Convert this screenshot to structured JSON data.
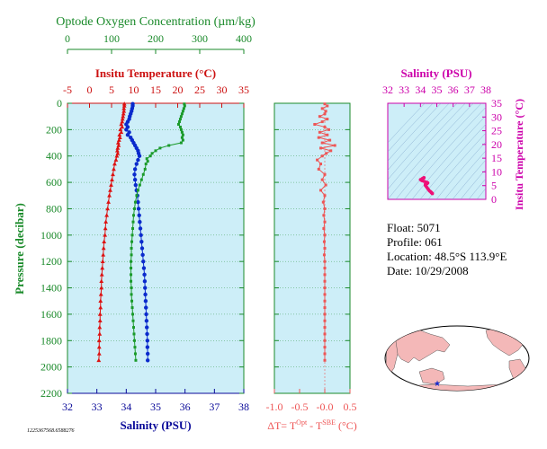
{
  "chart_data": [
    {
      "type": "line",
      "panel": "main-profile",
      "y_axis": {
        "label": "Pressure (decibar)",
        "range": [
          0,
          2200
        ],
        "inverted": true,
        "ticks": [
          0,
          200,
          400,
          600,
          800,
          1000,
          1200,
          1400,
          1600,
          1800,
          2000,
          2200
        ]
      },
      "axes": {
        "oxygen": {
          "title": "Optode Oxygen Concentration (µm/kg)",
          "range": [
            0,
            400
          ],
          "ticks": [
            0,
            100,
            200,
            300,
            400
          ],
          "color": "#1a8a2a"
        },
        "temperature": {
          "title": "Insitu Temperature (°C)",
          "range": [
            -5,
            35
          ],
          "ticks": [
            -5,
            0,
            5,
            10,
            15,
            20,
            25,
            30,
            35
          ],
          "color": "#cc1111"
        },
        "salinity": {
          "title": "Salinity (PSU)",
          "range": [
            32,
            38
          ],
          "ticks": [
            32,
            33,
            34,
            35,
            36,
            37,
            38
          ],
          "color": "#0a0a99"
        }
      },
      "series": [
        {
          "axis": "temperature",
          "marker": "triangle",
          "color": "#dd1111",
          "points": [
            [
              7.9,
              5
            ],
            [
              7.9,
              20
            ],
            [
              7.8,
              40
            ],
            [
              7.8,
              60
            ],
            [
              7.7,
              80
            ],
            [
              7.6,
              100
            ],
            [
              7.5,
              120
            ],
            [
              7.4,
              140
            ],
            [
              7.2,
              160
            ],
            [
              7.4,
              180
            ],
            [
              7.0,
              200
            ],
            [
              7.2,
              220
            ],
            [
              6.8,
              240
            ],
            [
              6.9,
              260
            ],
            [
              6.7,
              280
            ],
            [
              6.5,
              300
            ],
            [
              6.6,
              320
            ],
            [
              6.4,
              340
            ],
            [
              6.3,
              360
            ],
            [
              6.4,
              380
            ],
            [
              6.2,
              400
            ],
            [
              6.0,
              430
            ],
            [
              5.7,
              460
            ],
            [
              5.5,
              500
            ],
            [
              5.3,
              540
            ],
            [
              5.1,
              580
            ],
            [
              4.9,
              620
            ],
            [
              4.7,
              660
            ],
            [
              4.5,
              700
            ],
            [
              4.3,
              750
            ],
            [
              4.1,
              800
            ],
            [
              3.9,
              850
            ],
            [
              3.7,
              900
            ],
            [
              3.6,
              950
            ],
            [
              3.5,
              1000
            ],
            [
              3.3,
              1050
            ],
            [
              3.2,
              1100
            ],
            [
              3.1,
              1150
            ],
            [
              3.0,
              1200
            ],
            [
              2.9,
              1250
            ],
            [
              2.8,
              1300
            ],
            [
              2.7,
              1350
            ],
            [
              2.7,
              1400
            ],
            [
              2.6,
              1450
            ],
            [
              2.5,
              1500
            ],
            [
              2.5,
              1550
            ],
            [
              2.4,
              1600
            ],
            [
              2.4,
              1650
            ],
            [
              2.3,
              1700
            ],
            [
              2.3,
              1750
            ],
            [
              2.2,
              1800
            ],
            [
              2.2,
              1850
            ],
            [
              2.2,
              1900
            ],
            [
              2.1,
              1950
            ]
          ]
        },
        {
          "axis": "salinity",
          "marker": "circle",
          "color": "#0a2acc",
          "points": [
            [
              34.22,
              5
            ],
            [
              34.22,
              20
            ],
            [
              34.2,
              40
            ],
            [
              34.18,
              60
            ],
            [
              34.15,
              80
            ],
            [
              34.12,
              100
            ],
            [
              34.1,
              120
            ],
            [
              34.05,
              140
            ],
            [
              34.0,
              160
            ],
            [
              34.05,
              180
            ],
            [
              34.0,
              200
            ],
            [
              34.1,
              220
            ],
            [
              34.05,
              240
            ],
            [
              34.15,
              260
            ],
            [
              34.2,
              280
            ],
            [
              34.25,
              300
            ],
            [
              34.3,
              320
            ],
            [
              34.35,
              340
            ],
            [
              34.4,
              360
            ],
            [
              34.42,
              380
            ],
            [
              34.45,
              400
            ],
            [
              34.4,
              430
            ],
            [
              34.35,
              460
            ],
            [
              34.3,
              500
            ],
            [
              34.28,
              540
            ],
            [
              34.3,
              580
            ],
            [
              34.32,
              620
            ],
            [
              34.35,
              660
            ],
            [
              34.38,
              700
            ],
            [
              34.4,
              750
            ],
            [
              34.42,
              800
            ],
            [
              34.44,
              850
            ],
            [
              34.46,
              900
            ],
            [
              34.48,
              950
            ],
            [
              34.5,
              1000
            ],
            [
              34.52,
              1050
            ],
            [
              34.54,
              1100
            ],
            [
              34.56,
              1150
            ],
            [
              34.58,
              1200
            ],
            [
              34.6,
              1250
            ],
            [
              34.62,
              1300
            ],
            [
              34.63,
              1350
            ],
            [
              34.64,
              1400
            ],
            [
              34.65,
              1450
            ],
            [
              34.66,
              1500
            ],
            [
              34.67,
              1550
            ],
            [
              34.68,
              1600
            ],
            [
              34.69,
              1650
            ],
            [
              34.7,
              1700
            ],
            [
              34.71,
              1750
            ],
            [
              34.72,
              1800
            ],
            [
              34.72,
              1850
            ],
            [
              34.73,
              1900
            ],
            [
              34.73,
              1950
            ]
          ]
        },
        {
          "axis": "oxygen",
          "marker": "square",
          "color": "#1a9a2a",
          "points": [
            [
              265,
              5
            ],
            [
              266,
              20
            ],
            [
              264,
              40
            ],
            [
              262,
              60
            ],
            [
              260,
              80
            ],
            [
              258,
              100
            ],
            [
              256,
              120
            ],
            [
              254,
              140
            ],
            [
              252,
              160
            ],
            [
              256,
              180
            ],
            [
              258,
              200
            ],
            [
              260,
              220
            ],
            [
              262,
              240
            ],
            [
              260,
              260
            ],
            [
              262,
              280
            ],
            [
              258,
              300
            ],
            [
              230,
              320
            ],
            [
              210,
              340
            ],
            [
              200,
              360
            ],
            [
              192,
              380
            ],
            [
              188,
              400
            ],
            [
              180,
              420
            ],
            [
              182,
              440
            ],
            [
              178,
              460
            ],
            [
              176,
              500
            ],
            [
              172,
              540
            ],
            [
              168,
              580
            ],
            [
              164,
              620
            ],
            [
              160,
              660
            ],
            [
              157,
              700
            ],
            [
              154,
              750
            ],
            [
              152,
              800
            ],
            [
              150,
              850
            ],
            [
              149,
              900
            ],
            [
              148,
              950
            ],
            [
              147,
              1000
            ],
            [
              146,
              1050
            ],
            [
              145,
              1100
            ],
            [
              145,
              1150
            ],
            [
              144,
              1200
            ],
            [
              144,
              1250
            ],
            [
              144,
              1300
            ],
            [
              144,
              1350
            ],
            [
              145,
              1400
            ],
            [
              145,
              1450
            ],
            [
              146,
              1500
            ],
            [
              147,
              1550
            ],
            [
              148,
              1600
            ],
            [
              149,
              1650
            ],
            [
              150,
              1700
            ],
            [
              151,
              1750
            ],
            [
              152,
              1800
            ],
            [
              153,
              1850
            ],
            [
              154,
              1900
            ],
            [
              155,
              1950
            ]
          ]
        }
      ]
    },
    {
      "type": "line",
      "panel": "delta-t",
      "xlabel_prefix": "ΔT= T",
      "xlabel_sup1": "Opt",
      "xlabel_mid": " - T",
      "xlabel_sup2": "SBE",
      "xlabel_suffix": " (°C)",
      "x_range": [
        -1.0,
        0.5
      ],
      "x_ticks": [
        -1.0,
        -0.5,
        -0.0,
        0.5
      ],
      "x_tick_labels": [
        "-1.0",
        "-0.5",
        "-0.0",
        "0.5"
      ],
      "y_range": [
        0,
        2200
      ],
      "color": "#ee5555",
      "points": [
        [
          0.0,
          5
        ],
        [
          0.05,
          20
        ],
        [
          -0.05,
          40
        ],
        [
          0.02,
          60
        ],
        [
          0.0,
          80
        ],
        [
          -0.1,
          100
        ],
        [
          0.05,
          120
        ],
        [
          -0.05,
          140
        ],
        [
          -0.2,
          160
        ],
        [
          0.0,
          180
        ],
        [
          0.08,
          200
        ],
        [
          -0.1,
          220
        ],
        [
          0.05,
          240
        ],
        [
          -0.12,
          260
        ],
        [
          0.1,
          280
        ],
        [
          -0.05,
          300
        ],
        [
          0.2,
          320
        ],
        [
          -0.08,
          340
        ],
        [
          0.12,
          360
        ],
        [
          0.03,
          380
        ],
        [
          -0.05,
          400
        ],
        [
          -0.15,
          430
        ],
        [
          -0.08,
          460
        ],
        [
          -0.12,
          500
        ],
        [
          0.0,
          540
        ],
        [
          -0.05,
          580
        ],
        [
          0.02,
          620
        ],
        [
          -0.08,
          660
        ],
        [
          0.0,
          700
        ],
        [
          -0.03,
          750
        ],
        [
          0.0,
          800
        ],
        [
          -0.02,
          850
        ],
        [
          0.0,
          900
        ],
        [
          -0.02,
          950
        ],
        [
          0.0,
          1000
        ],
        [
          -0.01,
          1050
        ],
        [
          0.0,
          1100
        ],
        [
          -0.01,
          1150
        ],
        [
          0.0,
          1200
        ],
        [
          0.0,
          1250
        ],
        [
          0.0,
          1300
        ],
        [
          0.0,
          1350
        ],
        [
          0.0,
          1400
        ],
        [
          0.0,
          1450
        ],
        [
          0.0,
          1500
        ],
        [
          0.0,
          1550
        ],
        [
          0.0,
          1600
        ],
        [
          0.0,
          1650
        ],
        [
          0.0,
          1700
        ],
        [
          0.0,
          1750
        ],
        [
          0.0,
          1800
        ],
        [
          0.0,
          1850
        ],
        [
          0.0,
          1900
        ],
        [
          0.0,
          1950
        ]
      ]
    },
    {
      "type": "scatter",
      "panel": "ts-diagram",
      "title": "Salinity (PSU)",
      "ylabel": "Insitu Temperature (°C)",
      "x_range": [
        32,
        38
      ],
      "x_ticks": [
        32,
        33,
        34,
        35,
        36,
        37,
        38
      ],
      "y_range": [
        0,
        35
      ],
      "y_ticks": [
        0,
        5,
        10,
        15,
        20,
        25,
        30,
        35
      ],
      "color": "#cc00aa",
      "point_color": "#ee1177",
      "points": [
        [
          34.22,
          7.9
        ],
        [
          34.2,
          7.8
        ],
        [
          34.15,
          7.7
        ],
        [
          34.1,
          7.5
        ],
        [
          34.0,
          7.2
        ],
        [
          34.05,
          7.0
        ],
        [
          34.1,
          6.8
        ],
        [
          34.2,
          6.6
        ],
        [
          34.3,
          6.4
        ],
        [
          34.4,
          6.2
        ],
        [
          34.45,
          6.0
        ],
        [
          34.4,
          5.7
        ],
        [
          34.3,
          5.5
        ],
        [
          34.3,
          5.1
        ],
        [
          34.35,
          4.7
        ],
        [
          34.4,
          4.3
        ],
        [
          34.45,
          3.9
        ],
        [
          34.5,
          3.5
        ],
        [
          34.55,
          3.1
        ],
        [
          34.6,
          2.9
        ],
        [
          34.64,
          2.7
        ],
        [
          34.66,
          2.5
        ],
        [
          34.68,
          2.4
        ],
        [
          34.7,
          2.3
        ],
        [
          34.72,
          2.2
        ],
        [
          34.73,
          2.1
        ]
      ]
    }
  ],
  "float_info": {
    "float": "Float:  5071",
    "profile": "Profile:  061",
    "location": "Location:  48.5°S  113.9°E",
    "date": "Date:  10/29/2008"
  },
  "footer_id": "1225367568.6588276",
  "map": {
    "ocean_color": "#ffffff",
    "land_color": "#f4b8b8",
    "marker_color": "#1a2acc",
    "marker_lon": 113.9,
    "marker_lat": -48.5
  },
  "colors": {
    "panel_fill": "#cdeef8",
    "frame": "#1a8a2a",
    "temp": "#cc1111",
    "oxygen": "#1a8a2a",
    "salinity": "#0a0a99",
    "ts": "#cc00aa",
    "delta": "#ee5555"
  }
}
